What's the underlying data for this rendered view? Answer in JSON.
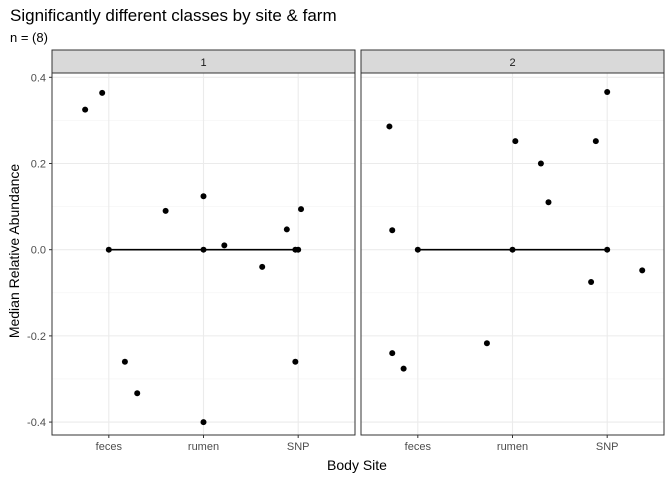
{
  "chart_data": {
    "type": "scatter",
    "title": "Significantly different classes by site & farm",
    "subtitle": "n = (8)",
    "xlabel": "Body Site",
    "ylabel": "Median Relative Abundance",
    "categories": [
      "feces",
      "rumen",
      "SNP"
    ],
    "ylim": [
      -0.43,
      0.41
    ],
    "yticks": [
      -0.4,
      -0.2,
      0.0,
      0.2,
      0.4
    ],
    "ytick_labels": [
      "-0.4",
      "-0.2",
      "0.0",
      "0.2",
      "0.4"
    ],
    "grid": true,
    "colors": {
      "point": "#000000",
      "strip": "#d9d9d9",
      "grid": "#ebebeb",
      "border": "#333333"
    },
    "panels": [
      {
        "label": "1",
        "points": [
          {
            "x": 0.75,
            "y": 0.325
          },
          {
            "x": 0.93,
            "y": 0.364
          },
          {
            "x": 1.0,
            "y": 0.0
          },
          {
            "x": 1.17,
            "y": -0.26
          },
          {
            "x": 1.3,
            "y": -0.333
          },
          {
            "x": 1.6,
            "y": 0.09
          },
          {
            "x": 2.0,
            "y": 0.124
          },
          {
            "x": 2.0,
            "y": 0.0
          },
          {
            "x": 2.0,
            "y": -0.4
          },
          {
            "x": 2.22,
            "y": 0.01
          },
          {
            "x": 2.62,
            "y": -0.04
          },
          {
            "x": 2.88,
            "y": 0.047
          },
          {
            "x": 2.97,
            "y": 0.0
          },
          {
            "x": 3.0,
            "y": 0.0
          },
          {
            "x": 2.97,
            "y": -0.26
          },
          {
            "x": 3.03,
            "y": 0.094
          }
        ],
        "segments": [
          {
            "x1": 1.0,
            "y1": 0.0,
            "x2": 3.0,
            "y2": 0.0
          }
        ]
      },
      {
        "label": "2",
        "points": [
          {
            "x": 0.7,
            "y": 0.286
          },
          {
            "x": 0.73,
            "y": 0.045
          },
          {
            "x": 0.73,
            "y": -0.24
          },
          {
            "x": 0.85,
            "y": -0.276
          },
          {
            "x": 1.0,
            "y": 0.0
          },
          {
            "x": 1.73,
            "y": -0.217
          },
          {
            "x": 2.0,
            "y": 0.0
          },
          {
            "x": 2.03,
            "y": 0.252
          },
          {
            "x": 2.3,
            "y": 0.2
          },
          {
            "x": 2.38,
            "y": 0.11
          },
          {
            "x": 2.83,
            "y": -0.075
          },
          {
            "x": 2.88,
            "y": 0.252
          },
          {
            "x": 3.0,
            "y": 0.366
          },
          {
            "x": 3.0,
            "y": 0.0
          },
          {
            "x": 3.37,
            "y": -0.048
          }
        ],
        "segments": [
          {
            "x1": 1.0,
            "y1": 0.0,
            "x2": 3.0,
            "y2": 0.0
          }
        ]
      }
    ]
  }
}
